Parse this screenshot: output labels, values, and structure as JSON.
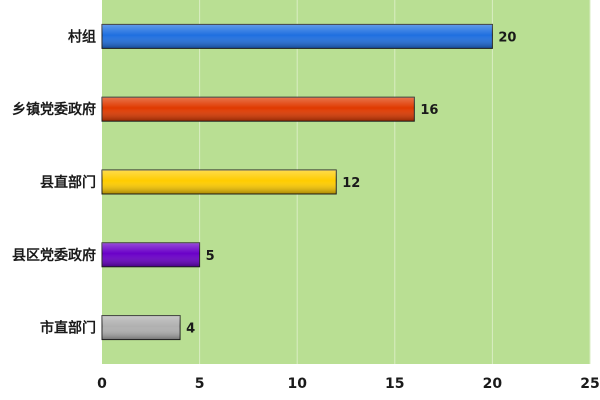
{
  "chart_data": {
    "type": "bar",
    "orientation": "horizontal",
    "categories": [
      "村组",
      "乡镇党委政府",
      "县直部门",
      "县区党委政府",
      "市直部门"
    ],
    "values": [
      20,
      16,
      12,
      5,
      4
    ],
    "bar_colors": [
      "#1f6fe0",
      "#e03a00",
      "#ffcc00",
      "#6a00c8",
      "#b0b0b0"
    ],
    "plot_background": "#b9df93",
    "grid_color": "#d9edc3",
    "xlim": [
      0,
      25
    ],
    "xticks": [
      0,
      5,
      10,
      15,
      20,
      25
    ],
    "title": "",
    "xlabel": "",
    "ylabel": "",
    "grid": true,
    "legend": "none"
  }
}
